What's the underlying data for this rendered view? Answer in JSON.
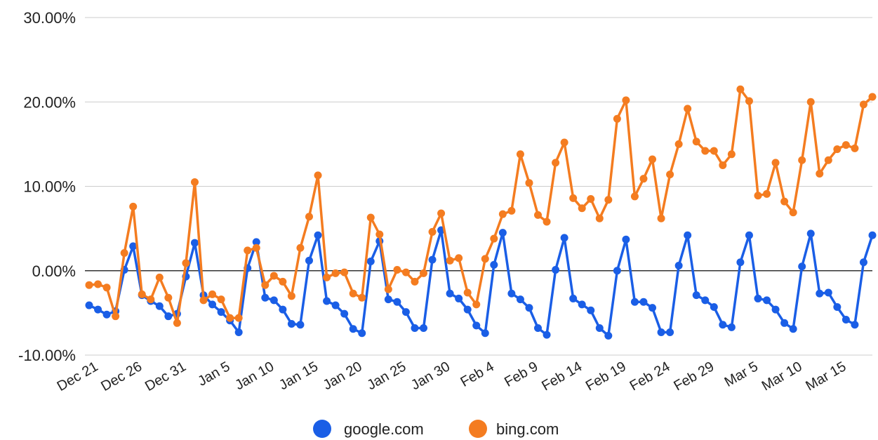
{
  "chart_data": {
    "type": "line",
    "title": "",
    "xlabel": "",
    "ylabel": "",
    "ylim": [
      -10,
      30
    ],
    "yticks": [
      {
        "value": 30,
        "label": "30.00%"
      },
      {
        "value": 20,
        "label": "20.00%"
      },
      {
        "value": 10,
        "label": "10.00%"
      },
      {
        "value": 0,
        "label": "0.00%"
      },
      {
        "value": -10,
        "label": "-10.00%"
      }
    ],
    "xticks": [
      {
        "index": 0,
        "label": "Dec 21"
      },
      {
        "index": 5,
        "label": "Dec 26"
      },
      {
        "index": 10,
        "label": "Dec 31"
      },
      {
        "index": 15,
        "label": "Jan 5"
      },
      {
        "index": 20,
        "label": "Jan 10"
      },
      {
        "index": 25,
        "label": "Jan 15"
      },
      {
        "index": 30,
        "label": "Jan 20"
      },
      {
        "index": 35,
        "label": "Jan 25"
      },
      {
        "index": 40,
        "label": "Jan 30"
      },
      {
        "index": 45,
        "label": "Feb 4"
      },
      {
        "index": 50,
        "label": "Feb 9"
      },
      {
        "index": 55,
        "label": "Feb 14"
      },
      {
        "index": 60,
        "label": "Feb 19"
      },
      {
        "index": 65,
        "label": "Feb 24"
      },
      {
        "index": 70,
        "label": "Feb 29"
      },
      {
        "index": 75,
        "label": "Mar 5"
      },
      {
        "index": 80,
        "label": "Mar 10"
      },
      {
        "index": 85,
        "label": "Mar 15"
      }
    ],
    "x_start": "Dec 21",
    "grid": true,
    "legend_position": "bottom",
    "series": [
      {
        "name": "google.com",
        "color": "#1a5ee6",
        "values": [
          -4.1,
          -4.6,
          -5.2,
          -4.8,
          0.1,
          2.9,
          -2.9,
          -3.6,
          -4.2,
          -5.4,
          -5.1,
          -0.7,
          3.3,
          -2.9,
          -4.0,
          -4.9,
          -5.9,
          -7.3,
          0.3,
          3.4,
          -3.2,
          -3.5,
          -4.6,
          -6.3,
          -6.4,
          1.2,
          4.2,
          -3.6,
          -4.1,
          -5.1,
          -6.9,
          -7.4,
          1.1,
          3.5,
          -3.4,
          -3.7,
          -4.9,
          -6.8,
          -6.8,
          1.3,
          4.8,
          -2.7,
          -3.3,
          -4.6,
          -6.5,
          -7.4,
          0.7,
          4.5,
          -2.7,
          -3.4,
          -4.4,
          -6.8,
          -7.6,
          0.1,
          3.9,
          -3.3,
          -4.0,
          -4.7,
          -6.8,
          -7.7,
          0.0,
          3.7,
          -3.7,
          -3.7,
          -4.4,
          -7.3,
          -7.3,
          0.6,
          4.2,
          -2.9,
          -3.5,
          -4.3,
          -6.4,
          -6.7,
          1.0,
          4.2,
          -3.3,
          -3.5,
          -4.6,
          -6.2,
          -6.9,
          0.5,
          4.4,
          -2.7,
          -2.6,
          -4.3,
          -5.8,
          -6.4,
          1.0,
          4.2
        ]
      },
      {
        "name": "bing.com",
        "color": "#f47c20",
        "values": [
          -1.7,
          -1.6,
          -2.0,
          -5.4,
          2.1,
          7.6,
          -2.8,
          -3.4,
          -0.8,
          -3.2,
          -6.2,
          0.9,
          10.5,
          -3.5,
          -2.8,
          -3.4,
          -5.6,
          -5.6,
          2.4,
          2.7,
          -1.7,
          -0.6,
          -1.3,
          -3.0,
          2.7,
          6.4,
          11.3,
          -0.8,
          -0.3,
          -0.2,
          -2.7,
          -3.2,
          6.3,
          4.3,
          -2.2,
          0.1,
          -0.2,
          -1.3,
          -0.3,
          4.6,
          6.8,
          1.2,
          1.5,
          -2.6,
          -4.0,
          1.4,
          3.8,
          6.7,
          7.1,
          13.8,
          10.4,
          6.6,
          5.8,
          12.8,
          15.2,
          8.6,
          7.4,
          8.5,
          6.2,
          8.4,
          18.0,
          20.2,
          8.8,
          10.9,
          13.2,
          6.2,
          11.4,
          15.0,
          19.2,
          15.3,
          14.2,
          14.2,
          12.5,
          13.8,
          21.5,
          20.1,
          8.9,
          9.1,
          12.8,
          8.2,
          6.9,
          13.1,
          20.0,
          11.5,
          13.1,
          14.4,
          14.9,
          14.5,
          19.7,
          20.6
        ]
      }
    ]
  }
}
